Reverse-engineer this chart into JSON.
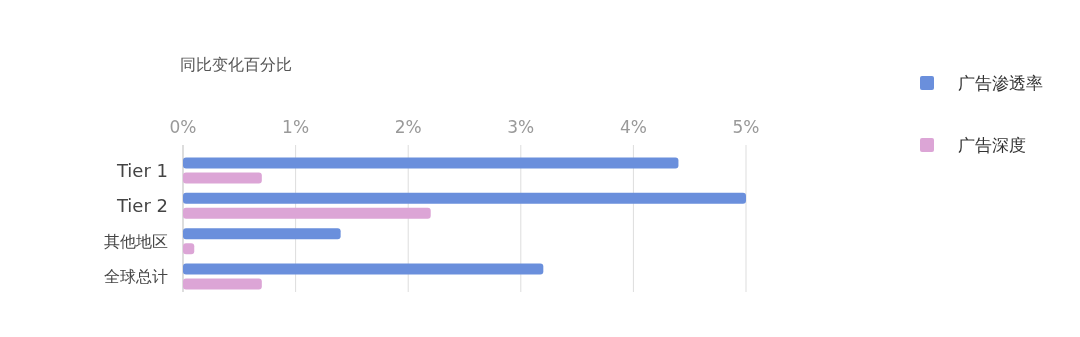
{
  "chart_data": {
    "type": "bar",
    "orientation": "horizontal",
    "title": "同比变化百分比",
    "categories": [
      "Tier 1",
      "Tier 2",
      "其他地区",
      "全球总计"
    ],
    "series": [
      {
        "name": "广告渗透率",
        "color": "#6a8fdc",
        "values": [
          4.4,
          5.0,
          1.4,
          3.2
        ]
      },
      {
        "name": "广告深度",
        "color": "#dca5d6",
        "values": [
          0.7,
          2.2,
          0.1,
          0.7
        ]
      }
    ],
    "xlim": [
      0,
      5
    ],
    "xticks": [
      {
        "value": 0,
        "label": "0%"
      },
      {
        "value": 1,
        "label": "1%"
      },
      {
        "value": 2,
        "label": "2%"
      },
      {
        "value": 3,
        "label": "3%"
      },
      {
        "value": 4,
        "label": "4%"
      },
      {
        "value": 5,
        "label": "5%"
      }
    ],
    "grid": "x",
    "legend": "right"
  }
}
